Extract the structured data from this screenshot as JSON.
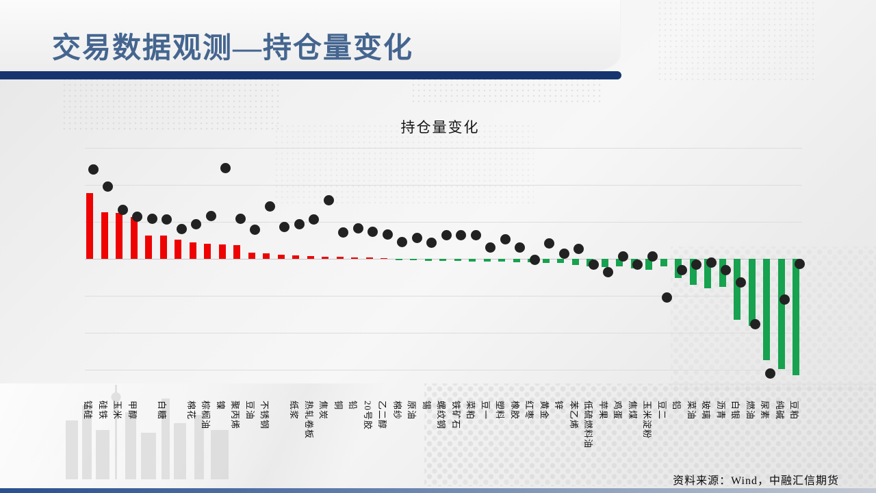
{
  "slide": {
    "header": {
      "title": "交易数据观测—持仓量变化"
    },
    "footer": {
      "source": "资料来源：Wind，中融汇信期货"
    },
    "accent_colors": {
      "header_bar": "#16356f",
      "title_text": "#44658f",
      "bottom_bar": "#2a4f8f"
    }
  },
  "chart_data": {
    "type": "bar",
    "subtype": "bar+scatter combo, no visible numeric axis labels",
    "title": "持仓量变化",
    "xlabel": "",
    "ylabel": "",
    "legend": "none",
    "grid": "horizontal gridlines on",
    "value_axis": {
      "min": -3.6,
      "max": 3.2,
      "gridline_unit": 1,
      "tick_labels_visible": false
    },
    "categories": [
      "锰硅",
      "硅铁",
      "玉米",
      "甲醇",
      "",
      "白糖",
      "",
      "棉花",
      "棕榈油",
      "镍",
      "聚丙烯",
      "豆油",
      "不锈钢",
      "",
      "纸浆",
      "热轧卷板",
      "焦炭",
      "铜",
      "铅",
      "20号胶",
      "乙二醇",
      "棉纱",
      "原油",
      "锡",
      "螺纹钢",
      "铁矿石",
      "菜粕",
      "豆一",
      "塑料",
      "橡胶",
      "红枣",
      "黄金",
      "锌",
      "苯乙烯",
      "低硫燃料油",
      "苹果",
      "鸡蛋",
      "焦煤",
      "玉米淀粉",
      "豆二",
      "铝",
      "菜油",
      "玻璃",
      "沥青",
      "白银",
      "燃油",
      "尿素",
      "纯碱",
      "豆粕"
    ],
    "series": [
      {
        "name": "bar-series",
        "type": "bar",
        "color_positive": "#ee0202",
        "color_negative": "#16a24f",
        "values": [
          1.78,
          1.26,
          1.24,
          1.13,
          0.63,
          0.63,
          0.52,
          0.44,
          0.41,
          0.39,
          0.37,
          0.17,
          0.15,
          0.11,
          0.09,
          0.07,
          0.06,
          0.05,
          0.04,
          0.03,
          0.01,
          -0.04,
          -0.04,
          -0.05,
          -0.06,
          -0.06,
          -0.07,
          -0.07,
          -0.08,
          -0.09,
          -0.1,
          -0.11,
          -0.12,
          -0.17,
          -0.21,
          -0.23,
          -0.21,
          -0.25,
          -0.3,
          -0.21,
          -0.52,
          -0.7,
          -0.8,
          -0.75,
          -1.65,
          -1.81,
          -2.74,
          -2.99,
          -3.14
        ]
      },
      {
        "name": "dot-series",
        "type": "scatter",
        "color": "#222222",
        "values": [
          2.41,
          1.96,
          1.33,
          1.13,
          1.09,
          1.07,
          0.81,
          0.93,
          1.15,
          2.46,
          1.09,
          0.78,
          1.41,
          0.87,
          0.93,
          1.06,
          1.59,
          0.72,
          0.83,
          0.74,
          0.65,
          0.46,
          0.57,
          0.43,
          0.63,
          0.63,
          0.63,
          0.31,
          0.53,
          0.3,
          -0.02,
          0.41,
          0.14,
          0.26,
          -0.15,
          -0.36,
          0.07,
          -0.15,
          0.07,
          -1.04,
          -0.3,
          -0.15,
          -0.1,
          -0.31,
          -0.64,
          -1.77,
          -3.11,
          -1.11,
          -0.13
        ]
      }
    ]
  }
}
